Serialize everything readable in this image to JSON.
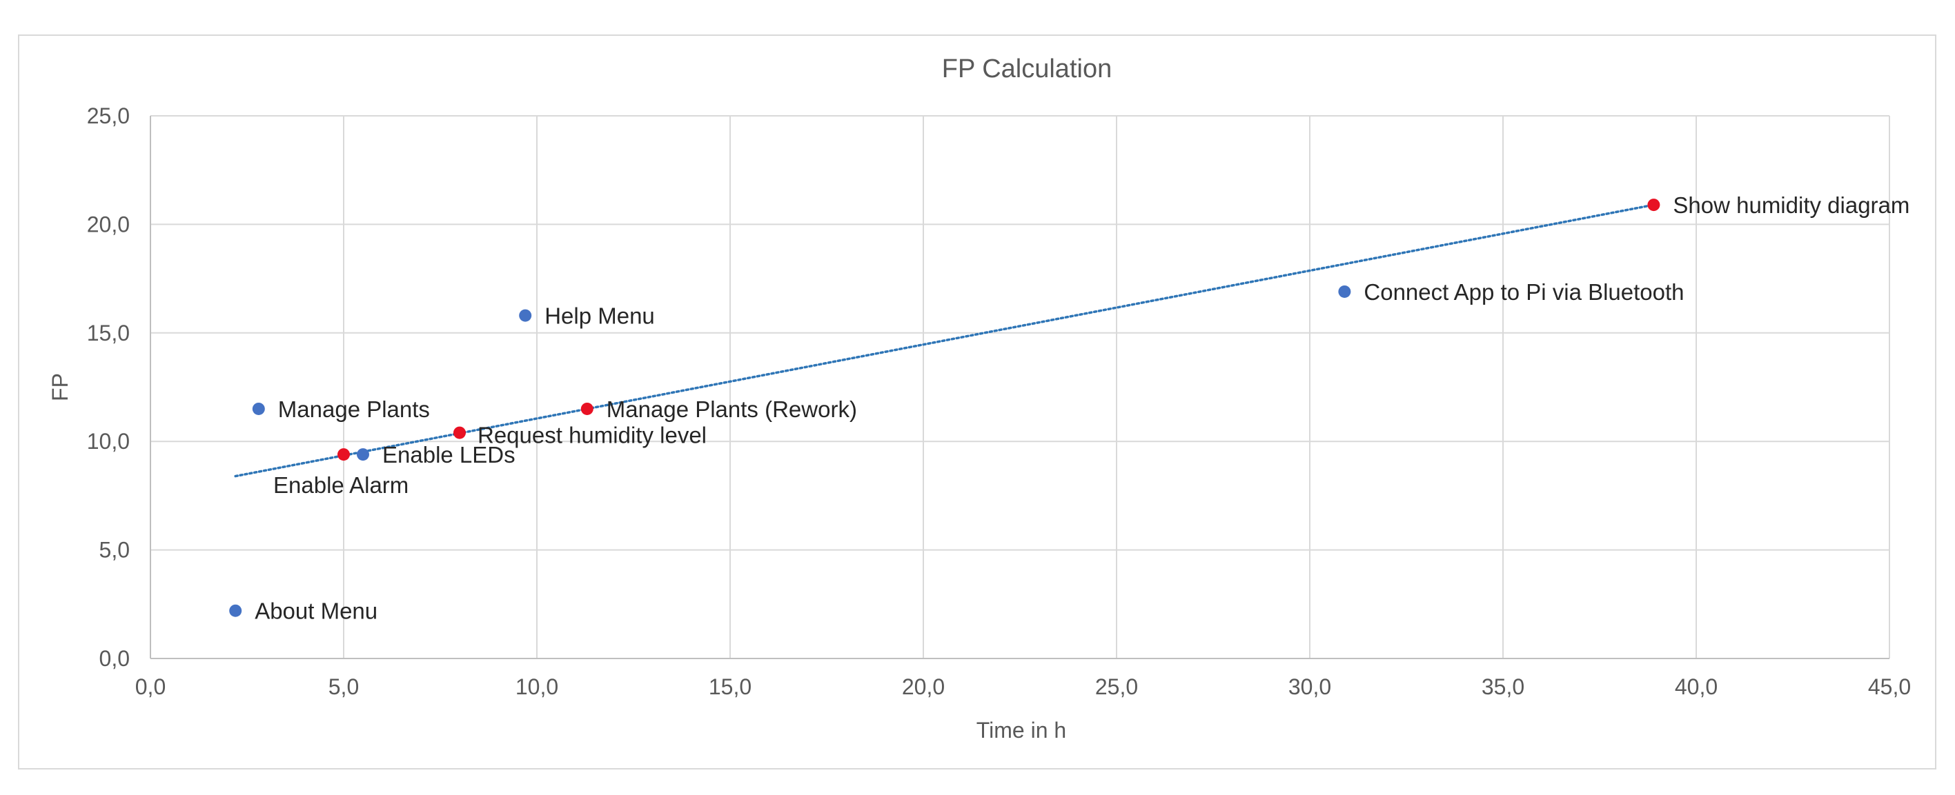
{
  "chart_data": {
    "type": "scatter",
    "title": "FP Calculation",
    "xlabel": "Time in h",
    "ylabel": "FP",
    "xlim": [
      0,
      45
    ],
    "ylim": [
      0,
      25
    ],
    "x_ticks": [
      "0,0",
      "5,0",
      "10,0",
      "15,0",
      "20,0",
      "25,0",
      "30,0",
      "35,0",
      "40,0",
      "45,0"
    ],
    "y_ticks": [
      "0,0",
      "5,0",
      "10,0",
      "15,0",
      "20,0",
      "25,0"
    ],
    "grid": true,
    "legend": "none",
    "colors": {
      "blue": "#4472c4",
      "red": "#e81123",
      "trend": "#2e75b6",
      "grid": "#d9d9d9"
    },
    "points": [
      {
        "label": "About Menu",
        "x": 2.2,
        "y": 2.2,
        "color": "blue"
      },
      {
        "label": "Manage Plants",
        "x": 2.8,
        "y": 11.5,
        "color": "blue"
      },
      {
        "label": "Enable Alarm",
        "x": 5.0,
        "y": 9.4,
        "color": "red"
      },
      {
        "label": "Enable LEDs",
        "x": 5.5,
        "y": 9.4,
        "color": "blue"
      },
      {
        "label": "Request humidity level",
        "x": 8.0,
        "y": 10.4,
        "color": "red"
      },
      {
        "label": "Help Menu",
        "x": 9.7,
        "y": 15.8,
        "color": "blue"
      },
      {
        "label": "Manage Plants (Rework)",
        "x": 11.3,
        "y": 11.5,
        "color": "red"
      },
      {
        "label": "Connect App to Pi via Bluetooth",
        "x": 30.9,
        "y": 16.9,
        "color": "blue"
      },
      {
        "label": "Show humidity diagram",
        "x": 38.9,
        "y": 20.9,
        "color": "red"
      }
    ],
    "trendline": {
      "type": "linear",
      "style": "dotted",
      "from": [
        2.2,
        8.4
      ],
      "to": [
        38.9,
        20.9
      ]
    }
  }
}
